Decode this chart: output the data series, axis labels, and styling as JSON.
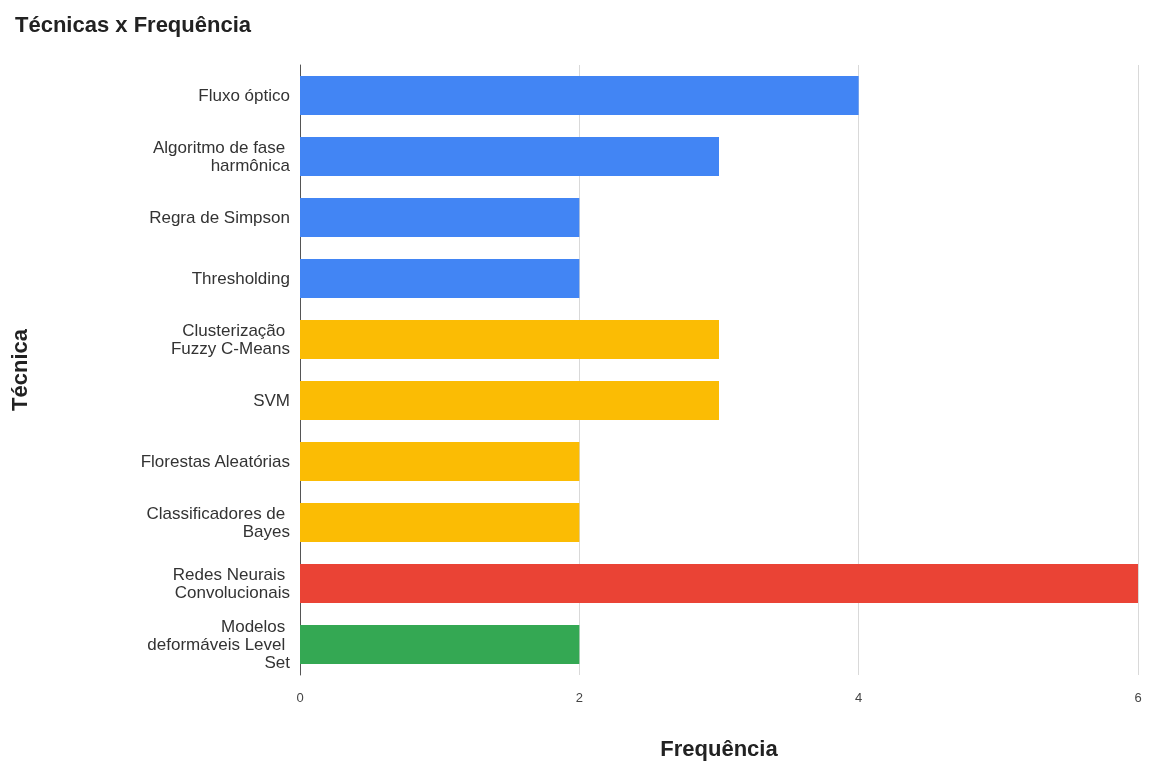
{
  "chart_data": {
    "type": "bar",
    "orientation": "horizontal",
    "title": "Técnicas x Frequência",
    "xlabel": "Frequência",
    "ylabel": "Técnica",
    "categories": [
      "Fluxo óptico",
      "Algoritmo de fase harmônica",
      "Regra de Simpson",
      "Thresholding",
      "Clusterização Fuzzy C-Means",
      "SVM",
      "Florestas Aleatórias",
      "Classificadores de Bayes",
      "Redes Neurais Convolucionais",
      "Modelos deformáveis Level Set"
    ],
    "values": [
      4,
      3,
      2,
      2,
      3,
      3,
      2,
      2,
      6,
      2
    ],
    "colors": [
      "#4285f4",
      "#4285f4",
      "#4285f4",
      "#4285f4",
      "#fbbc04",
      "#fbbc04",
      "#fbbc04",
      "#fbbc04",
      "#ea4335",
      "#34a853"
    ],
    "xlim": [
      0,
      6
    ],
    "xticks": [
      0,
      2,
      4,
      6
    ],
    "grid": "x"
  }
}
